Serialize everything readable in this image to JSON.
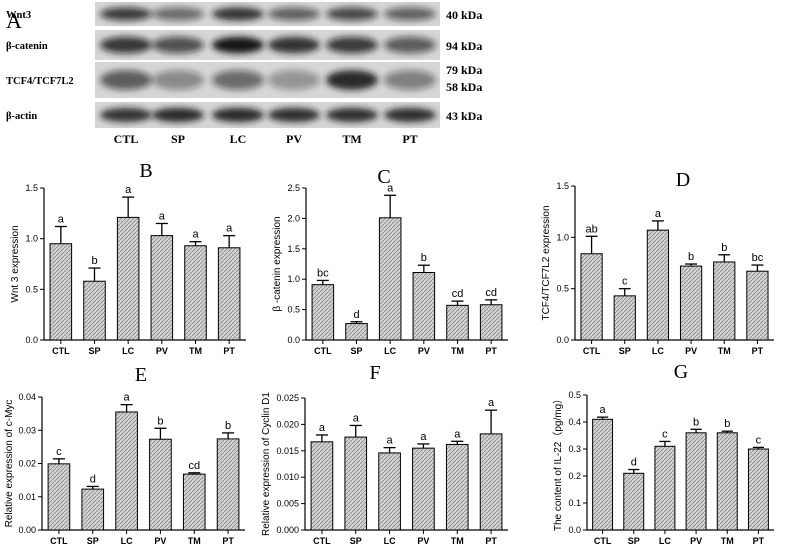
{
  "figure": {
    "panel_a": {
      "letter": "A",
      "lanes": [
        "CTL",
        "SP",
        "LC",
        "PV",
        "TM",
        "PT"
      ],
      "blots": [
        {
          "name": "Wnt3",
          "kda": [
            "40 kDa"
          ],
          "intensity": [
            0.78,
            0.55,
            0.85,
            0.6,
            0.72,
            0.6
          ]
        },
        {
          "name": "β-catenin",
          "kda": [
            "94 kDa"
          ],
          "intensity": [
            0.8,
            0.68,
            1.0,
            0.85,
            0.78,
            0.62
          ]
        },
        {
          "name": "TCF4/TCF7L2",
          "kda": [
            "79 kDa",
            "58 kDa"
          ],
          "intensity": [
            0.62,
            0.4,
            0.55,
            0.35,
            0.9,
            0.45
          ]
        },
        {
          "name": "β-actin",
          "kda": [
            "43 kDa"
          ],
          "intensity": [
            0.85,
            0.9,
            0.9,
            0.88,
            0.88,
            0.88
          ]
        }
      ]
    }
  },
  "chart_data": [
    {
      "type": "bar",
      "panel": "B",
      "categories": [
        "CTL",
        "SP",
        "LC",
        "PV",
        "TM",
        "PT"
      ],
      "values": [
        0.95,
        0.58,
        1.21,
        1.03,
        0.93,
        0.91
      ],
      "errors": [
        0.17,
        0.13,
        0.2,
        0.12,
        0.04,
        0.12
      ],
      "letters": [
        "a",
        "b",
        "a",
        "a",
        "a",
        "a"
      ],
      "ylabel": "Wnt 3 expression",
      "xlabel": "",
      "ylim": [
        0,
        1.5
      ],
      "yticks": [
        "0.0",
        "0.5",
        "1.0",
        "1.5"
      ],
      "title": ""
    },
    {
      "type": "bar",
      "panel": "C",
      "categories": [
        "CTL",
        "SP",
        "LC",
        "PV",
        "TM",
        "PT"
      ],
      "values": [
        0.91,
        0.27,
        2.01,
        1.11,
        0.57,
        0.58
      ],
      "errors": [
        0.07,
        0.03,
        0.37,
        0.12,
        0.07,
        0.08
      ],
      "letters": [
        "bc",
        "d",
        "a",
        "b",
        "cd",
        "cd"
      ],
      "ylabel": "β -catenin expression",
      "xlabel": "",
      "ylim": [
        0,
        2.5
      ],
      "yticks": [
        "0.0",
        "0.5",
        "1.0",
        "1.5",
        "2.0",
        "2.5"
      ],
      "title": ""
    },
    {
      "type": "bar",
      "panel": "D",
      "categories": [
        "CTL",
        "SP",
        "LC",
        "PV",
        "TM",
        "PT"
      ],
      "values": [
        0.84,
        0.43,
        1.07,
        0.72,
        0.76,
        0.67
      ],
      "errors": [
        0.17,
        0.07,
        0.09,
        0.02,
        0.07,
        0.06
      ],
      "letters": [
        "ab",
        "c",
        "a",
        "b",
        "b",
        "bc"
      ],
      "ylabel": "TCF4/TCF7L2 expression",
      "xlabel": "",
      "ylim": [
        0,
        1.5
      ],
      "yticks": [
        "0.0",
        "0.5",
        "1.0",
        "1.5"
      ],
      "title": ""
    },
    {
      "type": "bar",
      "panel": "E",
      "categories": [
        "CTL",
        "SP",
        "LC",
        "PV",
        "TM",
        "PT"
      ],
      "values": [
        0.0199,
        0.0123,
        0.0355,
        0.0273,
        0.0168,
        0.0274
      ],
      "errors": [
        0.0015,
        0.0008,
        0.0022,
        0.0033,
        0.0004,
        0.0018
      ],
      "letters": [
        "c",
        "d",
        "a",
        "b",
        "cd",
        "b"
      ],
      "ylabel": "Relative expression of c-Myc",
      "xlabel": "",
      "ylim": [
        0,
        0.04
      ],
      "yticks": [
        "0.00",
        "0.01",
        "0.02",
        "0.03",
        "0.04"
      ],
      "title": ""
    },
    {
      "type": "bar",
      "panel": "F",
      "categories": [
        "CTL",
        "SP",
        "LC",
        "PV",
        "TM",
        "PT"
      ],
      "values": [
        0.0167,
        0.0176,
        0.0146,
        0.0155,
        0.0162,
        0.0182
      ],
      "errors": [
        0.0013,
        0.0022,
        0.001,
        0.0008,
        0.0006,
        0.0045
      ],
      "letters": [
        "a",
        "a",
        "a",
        "a",
        "a",
        "a"
      ],
      "ylabel": "Relative expression of Cyclin D1",
      "xlabel": "",
      "ylim": [
        0,
        0.025
      ],
      "yticks": [
        "0.000",
        "0.005",
        "0.010",
        "0.015",
        "0.020",
        "0.025"
      ],
      "title": ""
    },
    {
      "type": "bar",
      "panel": "G",
      "categories": [
        "CTL",
        "SP",
        "LC",
        "PV",
        "TM",
        "PT"
      ],
      "values": [
        0.41,
        0.21,
        0.31,
        0.36,
        0.36,
        0.3
      ],
      "errors": [
        0.008,
        0.014,
        0.018,
        0.013,
        0.006,
        0.006
      ],
      "letters": [
        "a",
        "d",
        "c",
        "b",
        "b",
        "c"
      ],
      "ylabel": "The content of IL-22（pg/mg）",
      "xlabel": "",
      "ylim": [
        0,
        0.5
      ],
      "yticks": [
        "0.0",
        "0.1",
        "0.2",
        "0.3",
        "0.4",
        "0.5"
      ],
      "title": ""
    }
  ],
  "colors": {
    "bar_fill": "#c9c9c9",
    "bar_stroke": "#000000",
    "axis": "#000000",
    "blot_bg": "#d6d6d6",
    "band": "#141414"
  }
}
